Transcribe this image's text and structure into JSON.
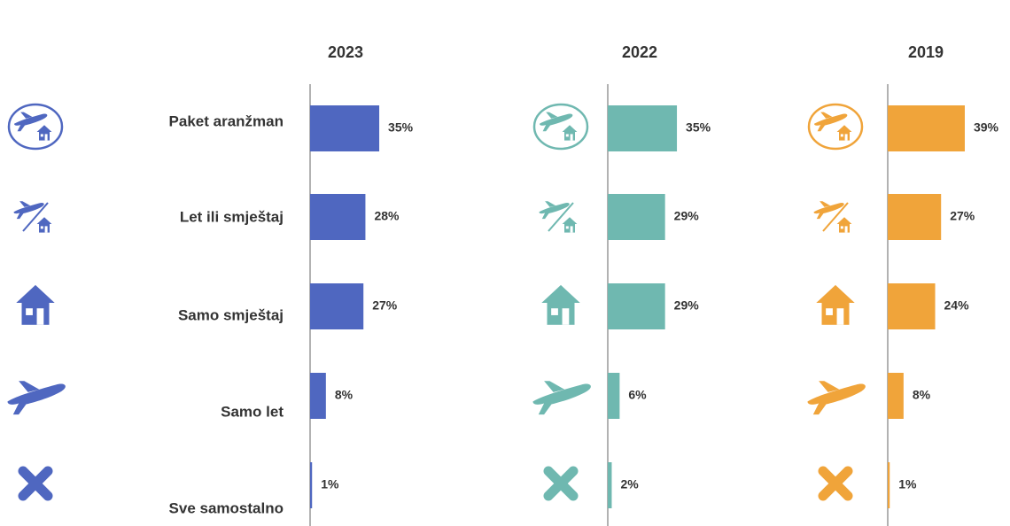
{
  "chart_data": [
    {
      "type": "bar",
      "title": "2023",
      "color": "#4f67c0",
      "categories": [
        "Paket aranžman",
        "Let ili smještaj",
        "Samo smještaj",
        "Samo let",
        "Sve samostalno"
      ],
      "values": [
        35,
        28,
        27,
        8,
        1
      ],
      "value_labels": [
        "35%",
        "28%",
        "27%",
        "8%",
        "1%"
      ]
    },
    {
      "type": "bar",
      "title": "2022",
      "color": "#6fb8b0",
      "values": [
        35,
        29,
        29,
        6,
        2
      ],
      "value_labels": [
        "35%",
        "29%",
        "29%",
        "6%",
        "2%"
      ]
    },
    {
      "type": "bar",
      "title": "2019",
      "color": "#f0a43a",
      "values": [
        39,
        27,
        24,
        8,
        1
      ],
      "value_labels": [
        "39%",
        "27%",
        "24%",
        "8%",
        "1%"
      ]
    }
  ]
}
